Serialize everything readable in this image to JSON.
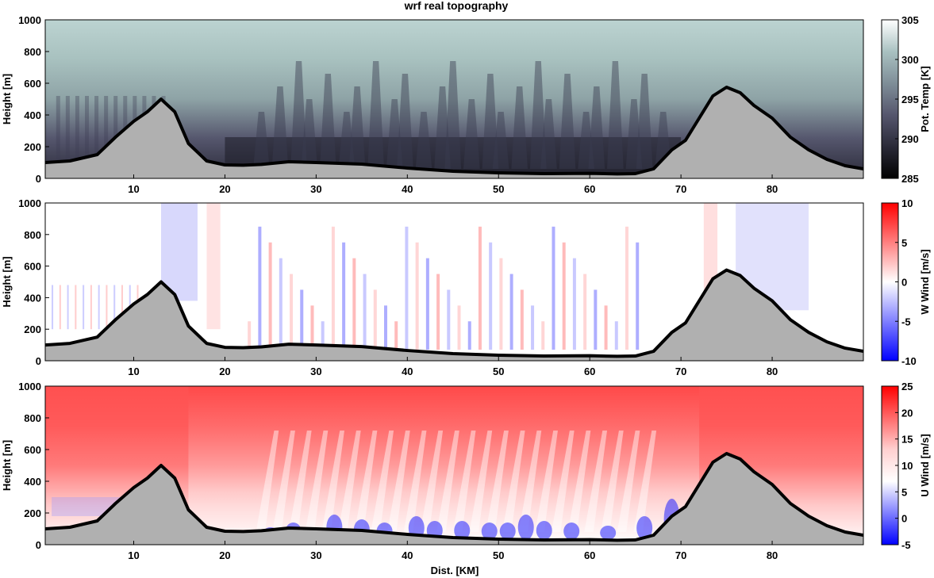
{
  "figure": {
    "title": "wrf real topography",
    "xlabel": "Dist. [KM]"
  },
  "chart_data": [
    {
      "type": "heatmap",
      "title": "wrf real topography",
      "ylabel": "Height [m]",
      "xlabel": "",
      "xlim": [
        0.3,
        90
      ],
      "ylim": [
        0,
        1000
      ],
      "xticks": [
        10,
        20,
        30,
        40,
        50,
        60,
        70,
        80
      ],
      "yticks": [
        0,
        200,
        400,
        600,
        800,
        1000
      ],
      "colorbar": {
        "label": "Pot. Temp [K]",
        "min": 285,
        "max": 305,
        "ticks": [
          285,
          290,
          295,
          300,
          305
        ],
        "colormap": "bone",
        "colors": [
          "#000000",
          "#2a2a38",
          "#55566d",
          "#7f8e98",
          "#a9c1c1",
          "#ffffff"
        ]
      },
      "field": "potential temperature, warm (~300 K) aloft, cool dark pools (~285-290 K) near ground between 20 and 70 km",
      "terrain": {
        "x": [
          0.3,
          3,
          6,
          8,
          10,
          11.5,
          13,
          14.5,
          16,
          18,
          20,
          22,
          24,
          27,
          30,
          35,
          40,
          45,
          50,
          55,
          60,
          63,
          65,
          67,
          69,
          70.5,
          72,
          73.5,
          75,
          76.5,
          78,
          80,
          82,
          84,
          86,
          88,
          90
        ],
        "y": [
          100,
          110,
          150,
          260,
          360,
          420,
          500,
          420,
          220,
          110,
          85,
          83,
          88,
          105,
          100,
          90,
          65,
          45,
          35,
          30,
          32,
          28,
          30,
          60,
          180,
          240,
          380,
          520,
          575,
          540,
          460,
          380,
          260,
          180,
          120,
          80,
          60
        ]
      }
    },
    {
      "type": "heatmap",
      "ylabel": "Height [m]",
      "xlabel": "",
      "xlim": [
        0.3,
        90
      ],
      "ylim": [
        0,
        1000
      ],
      "xticks": [
        10,
        20,
        30,
        40,
        50,
        60,
        70,
        80
      ],
      "yticks": [
        0,
        200,
        400,
        600,
        800,
        1000
      ],
      "colorbar": {
        "label": "W Wind [m/s]",
        "min": -10,
        "max": 10,
        "ticks": [
          -10,
          -5,
          0,
          5,
          10
        ],
        "colormap": "blue-white-red",
        "colors": [
          "#0000ff",
          "#ffffff",
          "#ff0000"
        ]
      },
      "field": "vertical wind, mostly near 0 with alternating weak updraft/downdraft columns (about -3 to +3 m/s) between 22 and 66 km",
      "terrain": {
        "x": [
          0.3,
          3,
          6,
          8,
          10,
          11.5,
          13,
          14.5,
          16,
          18,
          20,
          22,
          24,
          27,
          30,
          35,
          40,
          45,
          50,
          55,
          60,
          63,
          65,
          67,
          69,
          70.5,
          72,
          73.5,
          75,
          76.5,
          78,
          80,
          82,
          84,
          86,
          88,
          90
        ],
        "y": [
          100,
          110,
          150,
          260,
          360,
          420,
          500,
          420,
          220,
          110,
          85,
          83,
          88,
          105,
          100,
          90,
          65,
          45,
          35,
          30,
          32,
          28,
          30,
          60,
          180,
          240,
          380,
          520,
          575,
          540,
          460,
          380,
          260,
          180,
          120,
          80,
          60
        ]
      }
    },
    {
      "type": "heatmap",
      "ylabel": "Height [m]",
      "xlabel": "Dist. [KM]",
      "xlim": [
        0.3,
        90
      ],
      "ylim": [
        0,
        1000
      ],
      "xticks": [
        10,
        20,
        30,
        40,
        50,
        60,
        70,
        80
      ],
      "yticks": [
        0,
        200,
        400,
        600,
        800,
        1000
      ],
      "colorbar": {
        "label": "U Wind [m/s]",
        "min": -5,
        "max": 25,
        "ticks": [
          -5,
          0,
          5,
          10,
          15,
          20,
          25
        ],
        "colormap": "blue-white-red",
        "colors": [
          "#0000ff",
          "#ffffff",
          "#ff0000"
        ]
      },
      "field": "horizontal wind, strong westerly (15-20 m/s) aloft, weak or reversed (-5 to 0 m/s) in shallow layer near the valley floor",
      "terrain": {
        "x": [
          0.3,
          3,
          6,
          8,
          10,
          11.5,
          13,
          14.5,
          16,
          18,
          20,
          22,
          24,
          27,
          30,
          35,
          40,
          45,
          50,
          55,
          60,
          63,
          65,
          67,
          69,
          70.5,
          72,
          73.5,
          75,
          76.5,
          78,
          80,
          82,
          84,
          86,
          88,
          90
        ],
        "y": [
          100,
          110,
          150,
          260,
          360,
          420,
          500,
          420,
          220,
          110,
          85,
          83,
          88,
          105,
          100,
          90,
          65,
          45,
          35,
          30,
          32,
          28,
          30,
          60,
          180,
          240,
          380,
          520,
          575,
          540,
          460,
          380,
          260,
          180,
          120,
          80,
          60
        ]
      }
    }
  ]
}
